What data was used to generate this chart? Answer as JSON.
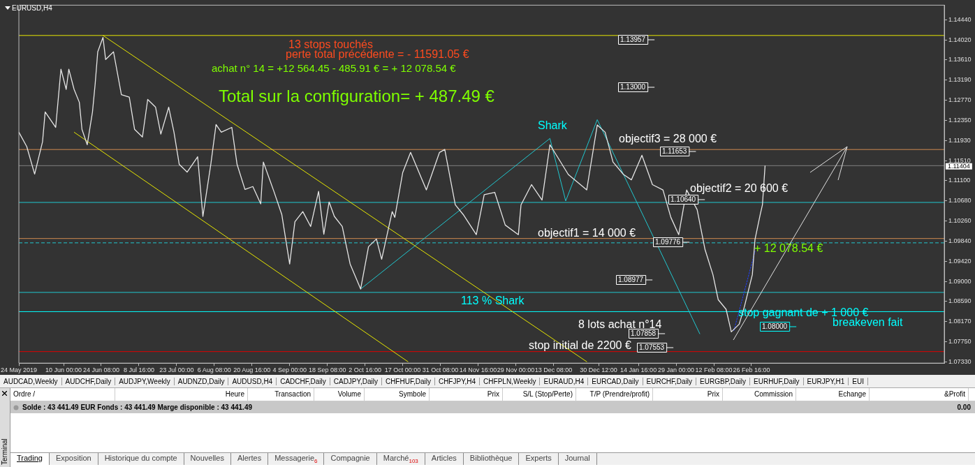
{
  "chart_data": {
    "type": "line",
    "title": "EURUSD,H4",
    "marker": "none",
    "x": [
      "2019-05-24",
      "2019-05-27",
      "2019-05-30",
      "2019-06-02",
      "2019-06-03",
      "2019-06-07",
      "2019-06-09",
      "2019-06-11",
      "2019-06-12",
      "2019-06-14",
      "2019-06-16",
      "2019-06-17",
      "2019-06-19",
      "2019-06-21",
      "2019-06-22",
      "2019-06-23",
      "2019-06-25",
      "2019-06-26",
      "2019-06-29",
      "2019-07-02",
      "2019-07-05",
      "2019-07-07",
      "2019-07-10",
      "2019-07-12",
      "2019-07-15",
      "2019-07-17",
      "2019-07-20",
      "2019-07-22",
      "2019-07-24",
      "2019-07-27",
      "2019-07-31",
      "2019-08-02",
      "2019-08-05",
      "2019-08-07",
      "2019-08-09",
      "2019-08-13",
      "2019-08-15",
      "2019-08-18",
      "2019-08-21",
      "2019-08-24",
      "2019-08-25",
      "2019-08-29",
      "2019-09-01",
      "2019-09-04",
      "2019-09-06",
      "2019-09-09",
      "2019-09-12",
      "2019-09-15",
      "2019-09-17",
      "2019-09-19",
      "2019-09-21",
      "2019-09-24",
      "2019-09-27",
      "2019-10-01",
      "2019-10-04",
      "2019-10-07",
      "2019-10-09",
      "2019-10-13",
      "2019-10-14",
      "2019-10-17",
      "2019-10-20",
      "2019-10-26",
      "2019-10-31",
      "2019-11-02",
      "2019-11-06",
      "2019-11-09",
      "2019-11-14",
      "2019-11-17",
      "2019-11-21",
      "2019-11-25",
      "2019-11-30",
      "2019-12-01",
      "2019-12-05",
      "2019-12-09",
      "2019-12-12",
      "2019-12-19",
      "2019-12-26",
      "2019-12-30",
      "2020-01-02",
      "2020-01-05",
      "2020-01-09",
      "2020-01-12",
      "2020-01-16",
      "2020-01-20",
      "2020-01-24",
      "2020-01-27",
      "2020-01-30",
      "2020-02-02",
      "2020-02-06",
      "2020-02-09",
      "2020-02-12",
      "2020-02-14",
      "2020-02-17",
      "2020-02-19",
      "2020-02-22",
      "2020-02-24",
      "2020-02-27",
      "2020-02-28",
      "2020-03-01T00:00",
      "2020-03-01T20:00",
      "2020-03-02T20:00"
    ],
    "series": [
      {
        "color": "#e6e6e6",
        "values": [
          1.121,
          1.118,
          1.1123,
          1.119,
          1.1252,
          1.122,
          1.1341,
          1.1299,
          1.1341,
          1.1299,
          1.1272,
          1.1216,
          1.1184,
          1.1252,
          1.1309,
          1.1377,
          1.1407,
          1.1361,
          1.1377,
          1.1288,
          1.1283,
          1.1216,
          1.12,
          1.1278,
          1.1262,
          1.1206,
          1.1262,
          1.121,
          1.1143,
          1.1127,
          1.1159,
          1.1035,
          1.1143,
          1.1226,
          1.121,
          1.122,
          1.1143,
          1.1091,
          1.1097,
          1.1061,
          1.1148,
          1.1087,
          1.1039,
          1.0936,
          1.1024,
          1.1045,
          1.1014,
          1.1087,
          1.0998,
          1.1065,
          1.1035,
          1.1014,
          1.0936,
          1.0884,
          1.0972,
          1.0988,
          1.0946,
          1.1045,
          1.1033,
          1.1126,
          1.1168,
          1.109,
          1.1168,
          1.1174,
          1.1059,
          1.1039,
          1.0997,
          1.108,
          1.1085,
          1.1017,
          1.0997,
          1.1059,
          1.1101,
          1.1069,
          1.1184,
          1.1122,
          1.109,
          1.1225,
          1.121,
          1.1148,
          1.1122,
          1.1111,
          1.1162,
          1.1101,
          1.109,
          1.1033,
          1.0997,
          1.109,
          1.1049,
          1.0966,
          1.0914,
          1.0862,
          1.0842,
          1.0795,
          1.0811,
          1.0848,
          1.0914,
          1.0987,
          1.1039,
          1.1059,
          1.114
        ]
      },
      {
        "type": "line",
        "color": "#e6e600",
        "x": [
          "2019-06-25",
          "2019-12-26"
        ],
        "values": [
          1.1411,
          1.0733
        ]
      },
      {
        "type": "line",
        "color": "#e6e600",
        "x": [
          "2019-06-14",
          "2019-10-19"
        ],
        "values": [
          1.121,
          1.0733
        ]
      },
      {
        "type": "line",
        "color": "#20c8d0",
        "x": [
          "2019-10-01",
          "2019-12-12",
          "2019-12-18",
          "2019-12-30",
          "2020-02-07"
        ],
        "values": [
          1.0884,
          1.1197,
          1.1067,
          1.1236,
          1.0791
        ]
      },
      {
        "type": "line",
        "color": "#2040ff",
        "line_style": "dotted",
        "x": [
          "2020-02-20",
          "2020-02-28"
        ],
        "values": [
          1.0798,
          1.0962
        ]
      }
    ],
    "xlim": [
      "2019-05-24",
      "2020-05-10"
    ],
    "xticks": [
      {
        "value": "2019-05-24",
        "label": "24 May 2019"
      },
      {
        "value": "2019-06-10T00:00",
        "label": "10 Jun 00:00"
      },
      {
        "value": "2019-06-24T08:00",
        "label": "24 Jun 08:00"
      },
      {
        "value": "2019-07-08T16:00",
        "label": "8 Jul 16:00"
      },
      {
        "value": "2019-07-23T00:00",
        "label": "23 Jul 00:00"
      },
      {
        "value": "2019-08-06T08:00",
        "label": "6 Aug 08:00"
      },
      {
        "value": "2019-08-20T16:00",
        "label": "20 Aug 16:00"
      },
      {
        "value": "2019-09-04T00:00",
        "label": "4 Sep 00:00"
      },
      {
        "value": "2019-09-18T08:00",
        "label": "18 Sep 08:00"
      },
      {
        "value": "2019-10-02T16:00",
        "label": "2 Oct 16:00"
      },
      {
        "value": "2019-10-17T00:00",
        "label": "17 Oct 00:00"
      },
      {
        "value": "2019-10-31T08:00",
        "label": "31 Oct 08:00"
      },
      {
        "value": "2019-11-14T16:00",
        "label": "14 Nov 16:00"
      },
      {
        "value": "2019-11-29T00:00",
        "label": "29 Nov 00:00"
      },
      {
        "value": "2019-12-13T08:00",
        "label": "13 Dec 08:00"
      },
      {
        "value": "2019-12-30T12:00",
        "label": "30 Dec 12:00"
      },
      {
        "value": "2020-01-14T16:00",
        "label": "14 Jan 16:00"
      },
      {
        "value": "2020-01-29T00:00",
        "label": "29 Jan 00:00"
      },
      {
        "value": "2020-02-12T08:00",
        "label": "12 Feb 08:00"
      },
      {
        "value": "2020-02-26T16:00",
        "label": "26 Feb 16:00"
      }
    ],
    "ylim": [
      1.073,
      1.1474
    ],
    "yticks": [
      {
        "value": 1.0733,
        "label": "1.07330"
      },
      {
        "value": 1.0775,
        "label": "1.07750"
      },
      {
        "value": 1.0817,
        "label": "1.08170"
      },
      {
        "value": 1.0859,
        "label": "1.08590"
      },
      {
        "value": 1.09,
        "label": "1.09000"
      },
      {
        "value": 1.0942,
        "label": "1.09420"
      },
      {
        "value": 1.0984,
        "label": "1.09840"
      },
      {
        "value": 1.1026,
        "label": "1.10260"
      },
      {
        "value": 1.1068,
        "label": "1.10680"
      },
      {
        "value": 1.111,
        "label": "1.11100"
      },
      {
        "value": 1.1151,
        "label": "1.11510"
      },
      {
        "value": 1.1193,
        "label": "1.11930"
      },
      {
        "value": 1.1235,
        "label": "1.12350"
      },
      {
        "value": 1.1277,
        "label": "1.12770"
      },
      {
        "value": 1.1319,
        "label": "1.13190"
      },
      {
        "value": 1.1361,
        "label": "1.13610"
      },
      {
        "value": 1.1402,
        "label": "1.14020"
      },
      {
        "value": 1.1444,
        "label": "1.14440"
      }
    ],
    "ref_lines": [
      {
        "axis": "y",
        "value": 1.1411,
        "color": "#e6e600"
      },
      {
        "axis": "y",
        "value": 1.1174,
        "color": "#d08a50"
      },
      {
        "axis": "y",
        "value": 1.11404,
        "label": "1.11404",
        "color": "#808080"
      },
      {
        "axis": "y",
        "value": 1.1064,
        "color": "#20c8d0"
      },
      {
        "axis": "y",
        "value": 1.0989,
        "color": "#d08a50"
      },
      {
        "axis": "y",
        "value": 1.098,
        "color": "#20c8d0",
        "line_style": "dashed"
      },
      {
        "axis": "y",
        "value": 1.0877,
        "color": "#20c8d0"
      },
      {
        "axis": "y",
        "value": 1.0837,
        "color": "#00ffff"
      },
      {
        "axis": "y",
        "value": 1.0754,
        "color": "#e00000"
      }
    ],
    "annotations": [
      "13 stops touchés",
      "perte total précédente = - 11591.05 €",
      "achat n° 14 = +12 564.45 - 485.91 € = + 12 078.54 €",
      "Total sur la configuration= + 487.49 €",
      "1.13957",
      "1.13000",
      "1.11653",
      "1.10640",
      "1.09776",
      "1.08977",
      "1.07858",
      "1.07553",
      "1.08000",
      "Shark",
      "objectif3 = 28 000 €",
      "objectif2 = 20 600 €",
      "objectif1 = 14 000 €",
      "113 % Shark",
      "+ 12 078.54 €",
      "stop gagnant de + 1 000 €",
      "breakeven fait",
      "8 lots achat n°14",
      "stop initial de 2200 €",
      "AUDCAD,Weekly",
      "AUDCHF,Daily",
      "AUDJPY,Weekly",
      "AUDNZD,Daily",
      "AUDUSD,H4",
      "CADCHF,Daily",
      "CADJPY,Daily",
      "CHFHUF,Daily",
      "CHFJPY,H4",
      "CHFPLN,Weekly",
      "EURAUD,H4",
      "EURCAD,Daily",
      "EURCHF,Daily",
      "EURGBP,Daily",
      "EURHUF,Daily",
      "EURJPY,H1",
      "EUI",
      "Ordre  /",
      "Heure",
      "Transaction",
      "Volume",
      "Symbole",
      "Prix",
      "S/L (Stop/Perte)",
      "T/P (Prendre/profit)",
      "Prix",
      "Commission",
      "Echange",
      "&Profit",
      "Solde : 43 441.49 EUR  Fonds : 43 441.49  Marge disponible : 43 441.49",
      "0.00",
      "Terminal",
      "Trading",
      "Exposition",
      "Historique du compte",
      "Nouvelles",
      "Alertes",
      "Messagerie$_{6}$",
      "Compagnie",
      "Marché$_{103}$",
      "Articles",
      "Bibliothèque",
      "Experts",
      "Journal"
    ]
  }
}
